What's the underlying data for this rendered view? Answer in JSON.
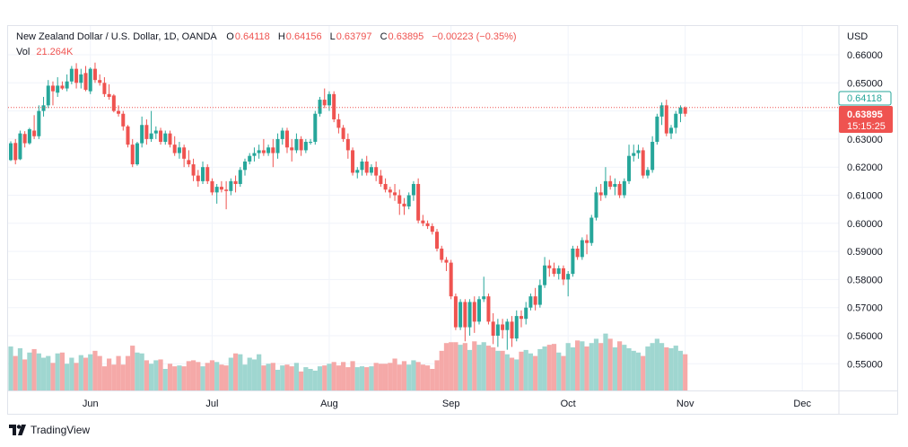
{
  "legend": {
    "symbol": "New Zealand Dollar / U.S. Dollar, 1D, OANDA",
    "open_key": "O",
    "open": "0.64118",
    "high_key": "H",
    "high": "0.64156",
    "low_key": "L",
    "low": "0.63797",
    "close_key": "C",
    "close": "0.63895",
    "change": "−0.00223 (−0.35%)",
    "vol_key": "Vol",
    "vol": "21.264K"
  },
  "price_axis": {
    "currency": "USD",
    "ticks": [
      "0.66000",
      "0.65000",
      "0.64000",
      "0.63000",
      "0.62000",
      "0.61000",
      "0.60000",
      "0.59000",
      "0.58000",
      "0.57000",
      "0.56000",
      "0.55000"
    ],
    "open_label": "0.64118",
    "last_price_label": "0.63895",
    "countdown": "15:15:25"
  },
  "brand": {
    "name": "TradingView"
  },
  "colors": {
    "up": "#26a69a",
    "down": "#ef5350",
    "up_vol": "#9fd6d0",
    "down_vol": "#f5a9a8"
  },
  "chart_data": {
    "type": "candlestick",
    "x_ticks": [
      "Jun",
      "Jul",
      "Aug",
      "Sep",
      "Oct",
      "Nov",
      "Dec"
    ],
    "ylim": [
      0.5405,
      0.6658
    ],
    "grid": true,
    "volume_relative": true,
    "candles": [
      [
        0.6225,
        0.6292,
        0.6222,
        0.6285,
        0.51
      ],
      [
        0.6286,
        0.63,
        0.621,
        0.6225,
        0.4
      ],
      [
        0.6228,
        0.633,
        0.6225,
        0.632,
        0.49
      ],
      [
        0.6318,
        0.6328,
        0.627,
        0.6285,
        0.36
      ],
      [
        0.6285,
        0.634,
        0.628,
        0.6335,
        0.44
      ],
      [
        0.633,
        0.6385,
        0.63,
        0.631,
        0.48
      ],
      [
        0.631,
        0.642,
        0.63,
        0.64,
        0.43
      ],
      [
        0.64,
        0.645,
        0.638,
        0.642,
        0.38
      ],
      [
        0.642,
        0.651,
        0.641,
        0.649,
        0.4
      ],
      [
        0.649,
        0.6505,
        0.642,
        0.647,
        0.32
      ],
      [
        0.6465,
        0.652,
        0.645,
        0.649,
        0.43
      ],
      [
        0.649,
        0.6505,
        0.6475,
        0.648,
        0.44
      ],
      [
        0.648,
        0.653,
        0.647,
        0.6505,
        0.31
      ],
      [
        0.6505,
        0.656,
        0.6495,
        0.655,
        0.38
      ],
      [
        0.655,
        0.657,
        0.648,
        0.65,
        0.32
      ],
      [
        0.65,
        0.655,
        0.648,
        0.653,
        0.41
      ],
      [
        0.6535,
        0.656,
        0.647,
        0.6475,
        0.38
      ],
      [
        0.647,
        0.6555,
        0.646,
        0.655,
        0.42
      ],
      [
        0.655,
        0.6572,
        0.65,
        0.651,
        0.46
      ],
      [
        0.651,
        0.653,
        0.649,
        0.65,
        0.4
      ],
      [
        0.65,
        0.652,
        0.645,
        0.646,
        0.28
      ],
      [
        0.646,
        0.6495,
        0.644,
        0.645,
        0.37
      ],
      [
        0.6455,
        0.646,
        0.6395,
        0.64,
        0.3
      ],
      [
        0.64,
        0.642,
        0.638,
        0.639,
        0.4
      ],
      [
        0.639,
        0.64,
        0.633,
        0.6345,
        0.3
      ],
      [
        0.6345,
        0.635,
        0.627,
        0.628,
        0.4
      ],
      [
        0.628,
        0.63,
        0.62,
        0.621,
        0.52
      ],
      [
        0.621,
        0.629,
        0.6205,
        0.6285,
        0.44
      ],
      [
        0.6285,
        0.638,
        0.627,
        0.635,
        0.43
      ],
      [
        0.635,
        0.637,
        0.628,
        0.63,
        0.35
      ],
      [
        0.63,
        0.64,
        0.629,
        0.632,
        0.31
      ],
      [
        0.632,
        0.6345,
        0.63,
        0.633,
        0.35
      ],
      [
        0.633,
        0.634,
        0.628,
        0.629,
        0.36
      ],
      [
        0.629,
        0.633,
        0.628,
        0.632,
        0.25
      ],
      [
        0.632,
        0.633,
        0.627,
        0.628,
        0.31
      ],
      [
        0.628,
        0.631,
        0.624,
        0.625,
        0.28
      ],
      [
        0.625,
        0.629,
        0.623,
        0.627,
        0.29
      ],
      [
        0.627,
        0.628,
        0.62,
        0.623,
        0.28
      ],
      [
        0.6225,
        0.626,
        0.62,
        0.621,
        0.34
      ],
      [
        0.621,
        0.623,
        0.615,
        0.617,
        0.35
      ],
      [
        0.617,
        0.619,
        0.613,
        0.615,
        0.33
      ],
      [
        0.615,
        0.622,
        0.614,
        0.62,
        0.28
      ],
      [
        0.62,
        0.621,
        0.614,
        0.615,
        0.32
      ],
      [
        0.615,
        0.616,
        0.61,
        0.611,
        0.35
      ],
      [
        0.611,
        0.614,
        0.607,
        0.613,
        0.33
      ],
      [
        0.613,
        0.615,
        0.611,
        0.612,
        0.3
      ],
      [
        0.612,
        0.615,
        0.605,
        0.6115,
        0.29
      ],
      [
        0.6115,
        0.616,
        0.61,
        0.615,
        0.38
      ],
      [
        0.615,
        0.617,
        0.611,
        0.614,
        0.43
      ],
      [
        0.614,
        0.62,
        0.613,
        0.619,
        0.42
      ],
      [
        0.619,
        0.623,
        0.617,
        0.622,
        0.3
      ],
      [
        0.622,
        0.625,
        0.621,
        0.624,
        0.38
      ],
      [
        0.624,
        0.627,
        0.622,
        0.625,
        0.36
      ],
      [
        0.625,
        0.628,
        0.623,
        0.626,
        0.42
      ],
      [
        0.626,
        0.63,
        0.624,
        0.625,
        0.29
      ],
      [
        0.625,
        0.628,
        0.624,
        0.627,
        0.31
      ],
      [
        0.627,
        0.63,
        0.62,
        0.625,
        0.32
      ],
      [
        0.625,
        0.632,
        0.623,
        0.63,
        0.24
      ],
      [
        0.63,
        0.634,
        0.628,
        0.633,
        0.29
      ],
      [
        0.633,
        0.634,
        0.625,
        0.627,
        0.3
      ],
      [
        0.627,
        0.63,
        0.622,
        0.626,
        0.28
      ],
      [
        0.626,
        0.632,
        0.625,
        0.63,
        0.32
      ],
      [
        0.63,
        0.631,
        0.624,
        0.626,
        0.22
      ],
      [
        0.626,
        0.63,
        0.625,
        0.629,
        0.27
      ],
      [
        0.629,
        0.63,
        0.628,
        0.629,
        0.25
      ],
      [
        0.629,
        0.64,
        0.628,
        0.639,
        0.23
      ],
      [
        0.639,
        0.645,
        0.638,
        0.644,
        0.28
      ],
      [
        0.644,
        0.648,
        0.641,
        0.642,
        0.29
      ],
      [
        0.642,
        0.647,
        0.64,
        0.646,
        0.31
      ],
      [
        0.646,
        0.647,
        0.636,
        0.637,
        0.33
      ],
      [
        0.637,
        0.639,
        0.632,
        0.634,
        0.29
      ],
      [
        0.634,
        0.635,
        0.629,
        0.63,
        0.33
      ],
      [
        0.63,
        0.632,
        0.623,
        0.626,
        0.27
      ],
      [
        0.626,
        0.627,
        0.617,
        0.618,
        0.34
      ],
      [
        0.618,
        0.62,
        0.616,
        0.619,
        0.27
      ],
      [
        0.619,
        0.623,
        0.617,
        0.622,
        0.28
      ],
      [
        0.622,
        0.624,
        0.617,
        0.618,
        0.27
      ],
      [
        0.618,
        0.621,
        0.617,
        0.62,
        0.28
      ],
      [
        0.62,
        0.622,
        0.615,
        0.617,
        0.32
      ],
      [
        0.617,
        0.619,
        0.613,
        0.614,
        0.31
      ],
      [
        0.614,
        0.616,
        0.611,
        0.612,
        0.31
      ],
      [
        0.612,
        0.613,
        0.609,
        0.611,
        0.32
      ],
      [
        0.611,
        0.614,
        0.608,
        0.61,
        0.37
      ],
      [
        0.61,
        0.612,
        0.603,
        0.607,
        0.3
      ],
      [
        0.607,
        0.609,
        0.603,
        0.606,
        0.34
      ],
      [
        0.606,
        0.611,
        0.605,
        0.61,
        0.3
      ],
      [
        0.61,
        0.615,
        0.608,
        0.614,
        0.35
      ],
      [
        0.614,
        0.616,
        0.6,
        0.601,
        0.33
      ],
      [
        0.601,
        0.603,
        0.599,
        0.6,
        0.3
      ],
      [
        0.6,
        0.601,
        0.598,
        0.599,
        0.29
      ],
      [
        0.599,
        0.6,
        0.596,
        0.597,
        0.25
      ],
      [
        0.597,
        0.598,
        0.59,
        0.591,
        0.35
      ],
      [
        0.591,
        0.592,
        0.586,
        0.587,
        0.46
      ],
      [
        0.587,
        0.588,
        0.583,
        0.586,
        0.55
      ],
      [
        0.586,
        0.587,
        0.573,
        0.574,
        0.56
      ],
      [
        0.574,
        0.575,
        0.562,
        0.563,
        0.56
      ],
      [
        0.563,
        0.573,
        0.562,
        0.572,
        0.53
      ],
      [
        0.572,
        0.573,
        0.558,
        0.563,
        0.55
      ],
      [
        0.563,
        0.573,
        0.56,
        0.572,
        0.47
      ],
      [
        0.572,
        0.574,
        0.561,
        0.565,
        0.57
      ],
      [
        0.565,
        0.574,
        0.564,
        0.573,
        0.53
      ],
      [
        0.573,
        0.581,
        0.572,
        0.574,
        0.56
      ],
      [
        0.574,
        0.575,
        0.564,
        0.565,
        0.52
      ],
      [
        0.565,
        0.568,
        0.557,
        0.56,
        0.5
      ],
      [
        0.56,
        0.566,
        0.556,
        0.564,
        0.46
      ],
      [
        0.564,
        0.566,
        0.559,
        0.562,
        0.46
      ],
      [
        0.562,
        0.566,
        0.555,
        0.565,
        0.42
      ],
      [
        0.565,
        0.567,
        0.556,
        0.559,
        0.38
      ],
      [
        0.559,
        0.569,
        0.558,
        0.567,
        0.36
      ],
      [
        0.567,
        0.569,
        0.563,
        0.566,
        0.45
      ],
      [
        0.566,
        0.572,
        0.564,
        0.57,
        0.47
      ],
      [
        0.57,
        0.575,
        0.569,
        0.574,
        0.43
      ],
      [
        0.574,
        0.577,
        0.569,
        0.571,
        0.4
      ],
      [
        0.571,
        0.58,
        0.57,
        0.578,
        0.48
      ],
      [
        0.578,
        0.588,
        0.577,
        0.585,
        0.51
      ],
      [
        0.585,
        0.587,
        0.581,
        0.584,
        0.53
      ],
      [
        0.584,
        0.586,
        0.581,
        0.582,
        0.54
      ],
      [
        0.582,
        0.585,
        0.58,
        0.584,
        0.44
      ],
      [
        0.584,
        0.585,
        0.578,
        0.58,
        0.4
      ],
      [
        0.58,
        0.583,
        0.574,
        0.582,
        0.55
      ],
      [
        0.582,
        0.592,
        0.581,
        0.591,
        0.5
      ],
      [
        0.591,
        0.592,
        0.587,
        0.588,
        0.58
      ],
      [
        0.588,
        0.595,
        0.587,
        0.594,
        0.57
      ],
      [
        0.594,
        0.596,
        0.589,
        0.593,
        0.51
      ],
      [
        0.593,
        0.603,
        0.592,
        0.602,
        0.55
      ],
      [
        0.602,
        0.613,
        0.601,
        0.611,
        0.6
      ],
      [
        0.611,
        0.614,
        0.608,
        0.61,
        0.55
      ],
      [
        0.61,
        0.62,
        0.609,
        0.615,
        0.66
      ],
      [
        0.615,
        0.617,
        0.612,
        0.613,
        0.6
      ],
      [
        0.613,
        0.616,
        0.61,
        0.614,
        0.5
      ],
      [
        0.614,
        0.615,
        0.609,
        0.61,
        0.57
      ],
      [
        0.61,
        0.616,
        0.609,
        0.615,
        0.53
      ],
      [
        0.615,
        0.628,
        0.614,
        0.624,
        0.49
      ],
      [
        0.624,
        0.628,
        0.622,
        0.625,
        0.46
      ],
      [
        0.625,
        0.628,
        0.623,
        0.626,
        0.44
      ],
      [
        0.626,
        0.627,
        0.616,
        0.617,
        0.4
      ],
      [
        0.617,
        0.62,
        0.616,
        0.619,
        0.51
      ],
      [
        0.619,
        0.631,
        0.618,
        0.629,
        0.55
      ],
      [
        0.629,
        0.639,
        0.628,
        0.638,
        0.6
      ],
      [
        0.638,
        0.643,
        0.635,
        0.642,
        0.55
      ],
      [
        0.642,
        0.644,
        0.631,
        0.632,
        0.5
      ],
      [
        0.632,
        0.635,
        0.63,
        0.634,
        0.49
      ],
      [
        0.634,
        0.64,
        0.632,
        0.639,
        0.52
      ],
      [
        0.639,
        0.642,
        0.636,
        0.6412,
        0.46
      ],
      [
        0.6412,
        0.6416,
        0.638,
        0.639,
        0.42
      ]
    ]
  }
}
